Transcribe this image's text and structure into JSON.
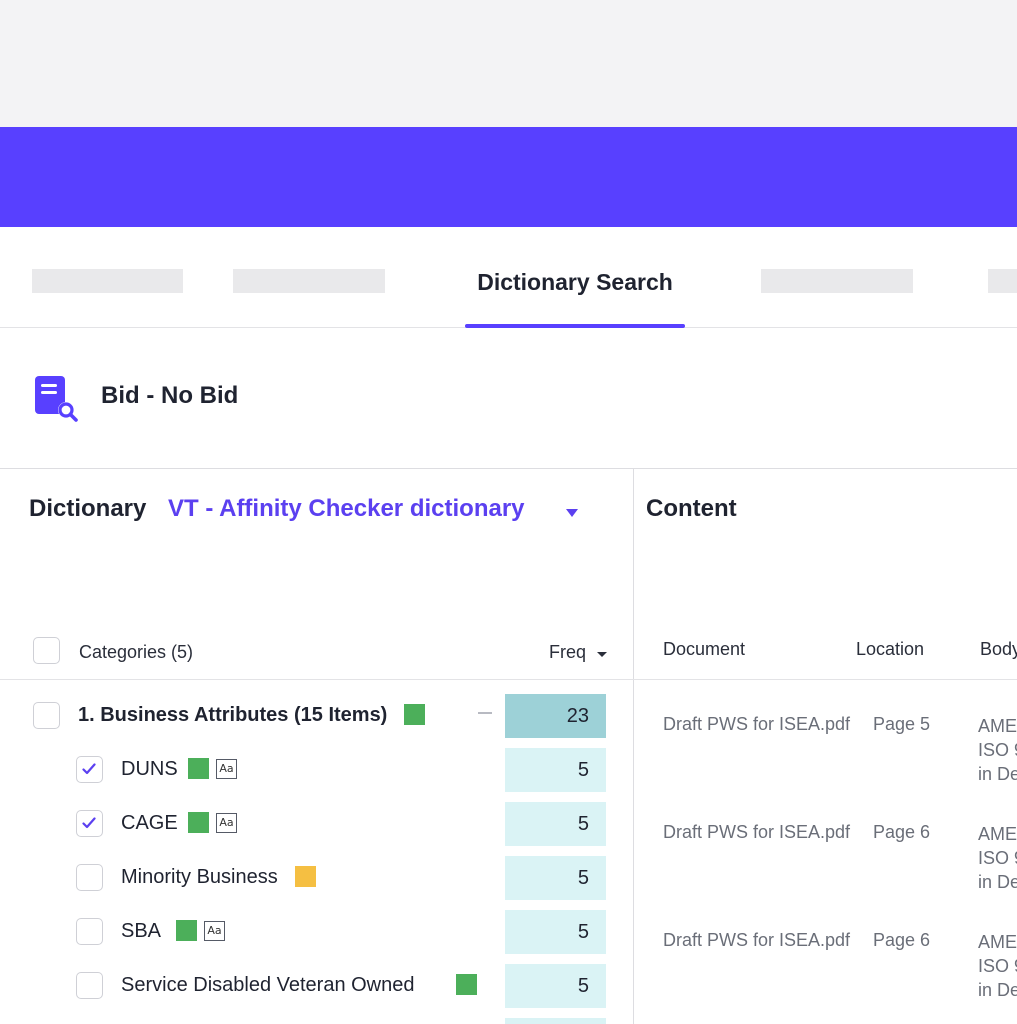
{
  "colors": {
    "brand": "#5840ff",
    "accent_text": "#5b40f0",
    "freq_strong": "#9dd1d7",
    "freq_light": "#daf3f5",
    "tag_green": "#4caf5a",
    "tag_yellow": "#f5bf42"
  },
  "tabs": {
    "active_label": "Dictionary Search",
    "placeholders": [
      "",
      "",
      "",
      ""
    ]
  },
  "project": {
    "icon": "book-search-icon",
    "title": "Bid - No Bid"
  },
  "dictionary": {
    "label": "Dictionary",
    "selected": "VT - Affinity Checker dictionary"
  },
  "categories": {
    "header_label": "Categories (5)",
    "freq_label": "Freq",
    "group": {
      "label": "1. Business Attributes (15 Items)",
      "tag": "green",
      "freq": "23"
    },
    "items": [
      {
        "label": "DUNS",
        "checked": true,
        "tag": "green",
        "case_sensitive": true,
        "freq": "5"
      },
      {
        "label": "CAGE",
        "checked": true,
        "tag": "green",
        "case_sensitive": true,
        "freq": "5"
      },
      {
        "label": "Minority Business",
        "checked": false,
        "tag": "yellow",
        "case_sensitive": false,
        "freq": "5"
      },
      {
        "label": "SBA",
        "checked": false,
        "tag": "green",
        "case_sensitive": true,
        "freq": "5"
      },
      {
        "label": "Service Disabled Veteran Owned",
        "checked": false,
        "tag": "green",
        "case_sensitive": false,
        "freq": "5"
      }
    ],
    "case_icon_label": "Aa"
  },
  "content": {
    "title": "Content",
    "columns": {
      "document": "Document",
      "location": "Location",
      "body": "Body"
    },
    "rows": [
      {
        "document": "Draft PWS for ISEA.pdf",
        "location": "Page 5",
        "body": [
          "AME",
          "ISO 9",
          "in De"
        ]
      },
      {
        "document": "Draft PWS for ISEA.pdf",
        "location": "Page 6",
        "body": [
          "AME",
          "ISO 9",
          "in De"
        ]
      },
      {
        "document": "Draft PWS for ISEA.pdf",
        "location": "Page 6",
        "body": [
          "AME",
          "ISO 9",
          "in De"
        ]
      }
    ]
  }
}
